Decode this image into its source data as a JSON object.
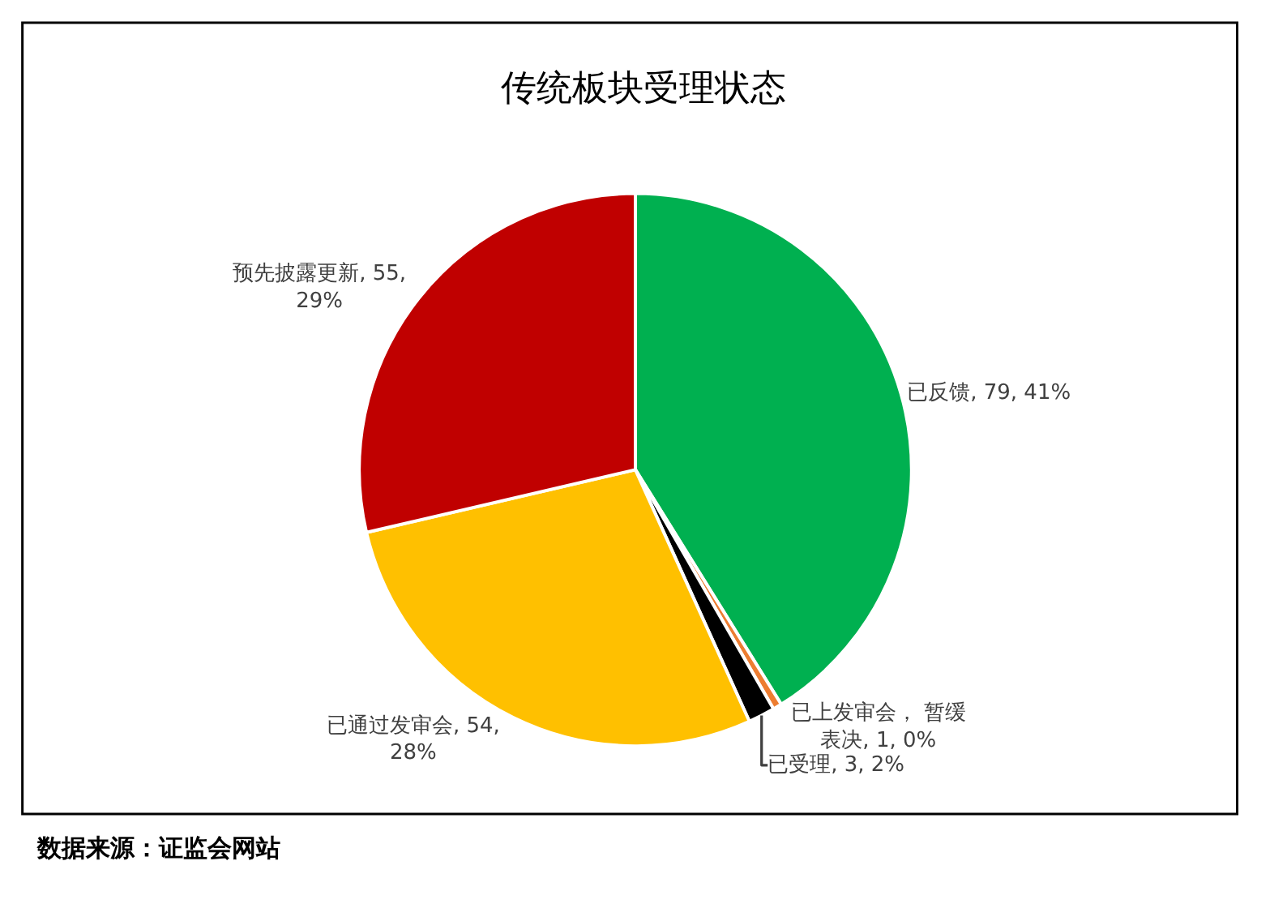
{
  "chart_data": {
    "type": "pie",
    "title": "传统板块受理状态",
    "categories": [
      "已反馈",
      "已上发审会， 暂缓表决",
      "已受理",
      "已通过发审会",
      "预先披露更新"
    ],
    "values": [
      79,
      1,
      3,
      54,
      55
    ],
    "value_labels": [
      "79, 41%",
      "1, 0%",
      "3, 2%",
      "54, 28%",
      "55, 29%"
    ],
    "colors": [
      "#00b050",
      "#ed7d31",
      "#000000",
      "#ffc000",
      "#c00000"
    ],
    "legend": false,
    "annotations": [
      "数据来源：证监会网站"
    ]
  }
}
